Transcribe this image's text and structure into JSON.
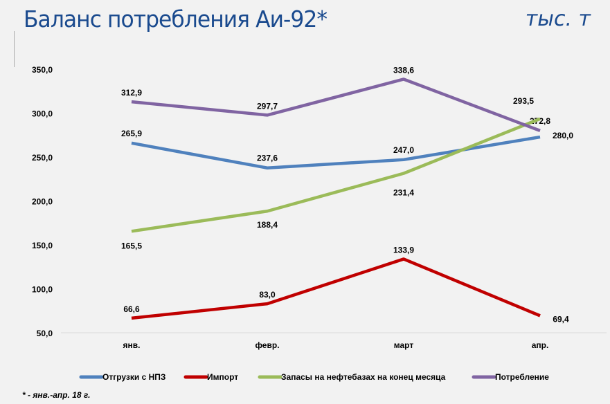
{
  "header": {
    "title": "Баланс потребления Аи-92*",
    "unit": "тыс. т"
  },
  "footnote": "* - янв.-апр. 18 г.",
  "chart_data": {
    "type": "line",
    "title": "Баланс потребления Аи-92*",
    "categories": [
      "янв.",
      "февр.",
      "март",
      "апр."
    ],
    "ylim": [
      50,
      350
    ],
    "yticks": [
      "50,0",
      "100,0",
      "150,0",
      "200,0",
      "250,0",
      "300,0",
      "350,0"
    ],
    "ytick_values": [
      50,
      100,
      150,
      200,
      250,
      300,
      350
    ],
    "grid": false,
    "legend": "bottom",
    "series": [
      {
        "name": "Отгрузки с НПЗ",
        "color": "#4f81bd",
        "values": [
          265.9,
          237.6,
          247.0,
          272.8
        ],
        "labels": [
          "265,9",
          "237,6",
          "247,0",
          "272,8"
        ]
      },
      {
        "name": "Импорт",
        "color": "#c00000",
        "values": [
          66.6,
          83.0,
          133.9,
          69.4
        ],
        "labels": [
          "66,6",
          "83,0",
          "133,9",
          "69,4"
        ]
      },
      {
        "name": "Запасы на нефтебазах на конец месяца",
        "color": "#9bbb59",
        "values": [
          165.5,
          188.4,
          231.4,
          293.5
        ],
        "labels": [
          "165,5",
          "188,4",
          "231,4",
          "293,5"
        ]
      },
      {
        "name": "Потребление",
        "color": "#8064a2",
        "values": [
          312.9,
          297.7,
          338.6,
          280.0
        ],
        "labels": [
          "312,9",
          "297,7",
          "338,6",
          "280,0"
        ]
      }
    ]
  }
}
